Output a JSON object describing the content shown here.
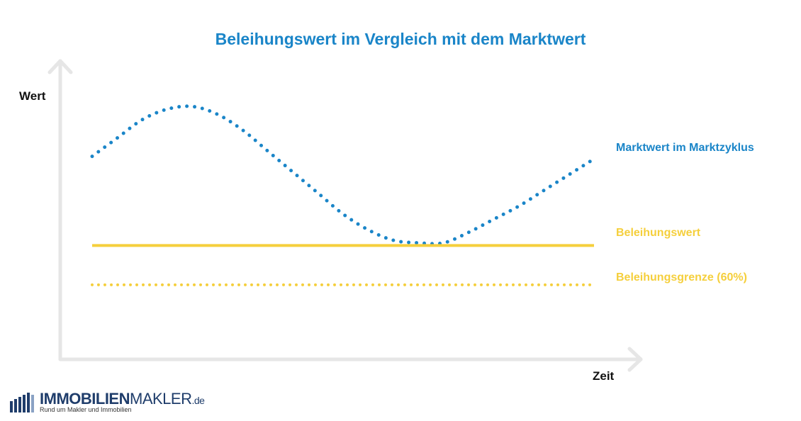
{
  "chart_data": {
    "type": "line",
    "title": "Beleihungswert im Vergleich mit dem Marktwert",
    "xlabel": "Zeit",
    "ylabel": "Wert",
    "x": [
      0,
      0.05,
      0.1,
      0.15,
      0.2,
      0.25,
      0.3,
      0.35,
      0.4,
      0.45,
      0.5,
      0.55,
      0.6,
      0.65,
      0.7,
      0.75,
      0.8,
      0.85,
      0.9,
      0.95,
      1.0
    ],
    "xlim": [
      0,
      1
    ],
    "ylim": [
      0,
      100
    ],
    "grid": false,
    "legend": "right",
    "series": [
      {
        "name": "Marktwert im Marktzyklus",
        "color": "#1a85c8",
        "style": "dotted",
        "values": [
          72,
          79,
          86,
          90,
          91,
          88,
          82,
          74,
          66,
          58,
          50,
          44,
          40,
          39,
          39,
          43,
          48,
          53,
          59,
          65,
          71
        ]
      },
      {
        "name": "Beleihungswert",
        "color": "#f5cf3c",
        "style": "solid",
        "values": [
          38,
          38,
          38,
          38,
          38,
          38,
          38,
          38,
          38,
          38,
          38,
          38,
          38,
          38,
          38,
          38,
          38,
          38,
          38,
          38,
          38
        ]
      },
      {
        "name": "Beleihungsgrenze (60%)",
        "color": "#f5cf3c",
        "style": "dotted",
        "values": [
          23,
          23,
          23,
          23,
          23,
          23,
          23,
          23,
          23,
          23,
          23,
          23,
          23,
          23,
          23,
          23,
          23,
          23,
          23,
          23,
          23
        ]
      }
    ]
  },
  "colors": {
    "title": "#1a85c8",
    "axis": "#e6e6e6",
    "brand": "#1f3d6b"
  },
  "logo": {
    "name_bold": "IMMOBILIEN",
    "name_light": "MAKLER",
    "domain": ".de",
    "tagline": "Rund um Makler und Immobilien",
    "icon": "building-bars-icon"
  }
}
